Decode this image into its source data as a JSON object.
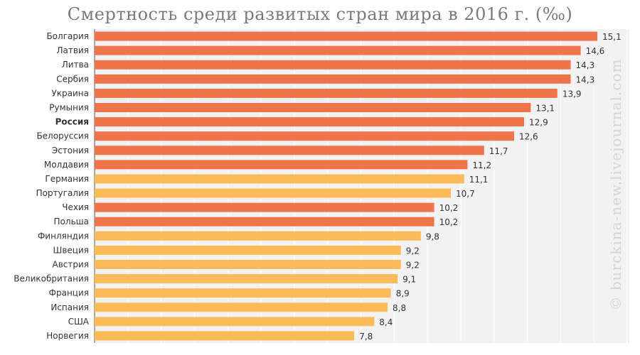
{
  "chart_data": {
    "type": "bar",
    "orientation": "horizontal",
    "title": "Смертность среди развитых стран мира в 2016 г. (‰)",
    "categories": [
      "Болгария",
      "Латвия",
      "Литва",
      "Сербия",
      "Украина",
      "Румыния",
      "Россия",
      "Белоруссия",
      "Эстония",
      "Молдавия",
      "Германия",
      "Португалия",
      "Чехия",
      "Польша",
      "Финляндия",
      "Швеция",
      "Австрия",
      "Великобритания",
      "Франция",
      "Испания",
      "США",
      "Норвегия"
    ],
    "values": [
      15.1,
      14.6,
      14.3,
      14.3,
      13.9,
      13.1,
      12.9,
      12.6,
      11.7,
      11.2,
      11.1,
      10.7,
      10.2,
      10.2,
      9.8,
      9.2,
      9.2,
      9.1,
      8.9,
      8.8,
      8.4,
      7.8
    ],
    "value_labels": [
      "15,1",
      "14,6",
      "14,3",
      "14,3",
      "13,9",
      "13,1",
      "12,9",
      "12,6",
      "11,7",
      "11,2",
      "11,1",
      "10,7",
      "10,2",
      "10,2",
      "9,8",
      "9,2",
      "9,2",
      "9,1",
      "8,9",
      "8,8",
      "8,4",
      "7,8"
    ],
    "groups": [
      "east",
      "east",
      "east",
      "east",
      "east",
      "east",
      "east",
      "east",
      "east",
      "east",
      "west",
      "west",
      "east",
      "east",
      "west",
      "west",
      "west",
      "west",
      "west",
      "west",
      "west",
      "west"
    ],
    "highlighted_category": "Россия",
    "colors": {
      "east": "#f0744a",
      "west": "#fbbb59",
      "background": "#f2f2f2",
      "grid": "#ffffff",
      "axis": "#555555"
    },
    "xlim": [
      0,
      15.1
    ],
    "grid": true,
    "legend": "none"
  },
  "watermark": "© burckina-new.livejournal.com"
}
